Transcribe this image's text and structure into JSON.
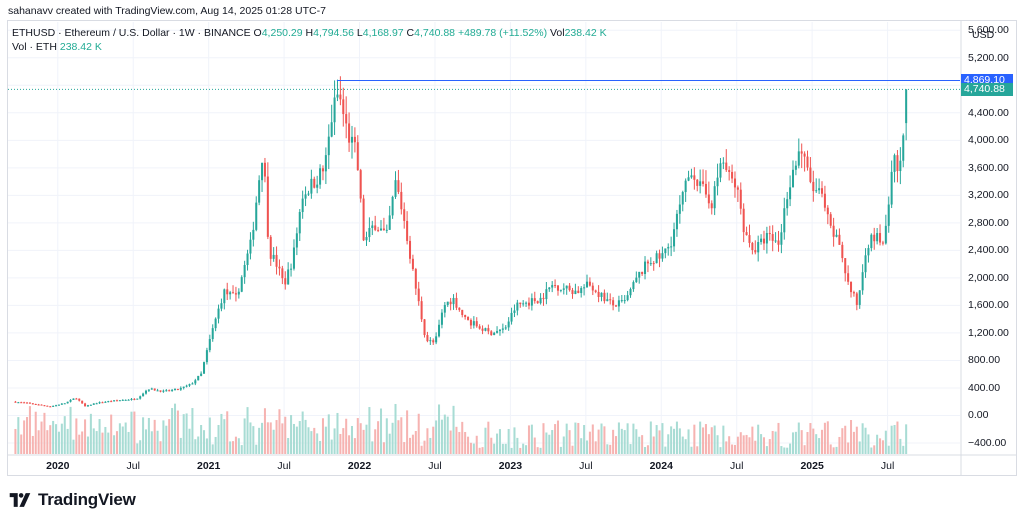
{
  "credit": "sahanavv created with TradingView.com, Aug 14, 2025 01:28 UTC-7",
  "legend": {
    "symbol": "ETHUSD · Ethereum / U.S. Dollar · 1W · BINANCE",
    "o_label": "O",
    "o_value": "4,250.29",
    "h_label": "H",
    "h_value": "4,794.56",
    "l_label": "L",
    "l_value": "4,168.97",
    "c_label": "C",
    "c_value": "4,740.88",
    "change": "+489.78 (+11.52%)",
    "vol_label": "Vol",
    "vol_value": "238.42 K",
    "vol_row_label": "Vol · ETH",
    "vol_row_value": "238.42 K"
  },
  "axis": {
    "currency": "USD"
  },
  "badges": {
    "high_line": "4,869.10",
    "last_price": "4,740.88"
  },
  "brand": {
    "name": "TradingView",
    "logo_icon": "tradingview-logo"
  },
  "colors": {
    "up": "#26a69a",
    "down": "#ef5350",
    "vol_up": "#a8dcd4",
    "vol_down": "#f6b3b1",
    "high_line": "#2962ff",
    "last_badge": "#26a69a",
    "high_badge": "#2962ff",
    "grid": "#f0f3fa"
  },
  "chart_data": {
    "type": "candlestick",
    "title": "ETHUSD · Ethereum / U.S. Dollar · 1W · BINANCE",
    "interval": "1W",
    "y_ticks": [
      "5,600.00",
      "5,200.00",
      "4,800.00",
      "4,400.00",
      "4,000.00",
      "3,600.00",
      "3,200.00",
      "2,800.00",
      "2,400.00",
      "2,000.00",
      "1,600.00",
      "1,200.00",
      "800.00",
      "400.00",
      "0.00",
      "−400.00"
    ],
    "x_ticks": [
      {
        "label": "2020",
        "t": 2020.0,
        "year": true
      },
      {
        "label": "Jul",
        "t": 2020.5,
        "year": false
      },
      {
        "label": "2021",
        "t": 2021.0,
        "year": true
      },
      {
        "label": "Jul",
        "t": 2021.5,
        "year": false
      },
      {
        "label": "2022",
        "t": 2022.0,
        "year": true
      },
      {
        "label": "Jul",
        "t": 2022.5,
        "year": false
      },
      {
        "label": "2023",
        "t": 2023.0,
        "year": true
      },
      {
        "label": "Jul",
        "t": 2023.5,
        "year": false
      },
      {
        "label": "2024",
        "t": 2024.0,
        "year": true
      },
      {
        "label": "Jul",
        "t": 2024.5,
        "year": false
      },
      {
        "label": "2025",
        "t": 2025.0,
        "year": true
      },
      {
        "label": "Jul",
        "t": 2025.5,
        "year": false
      }
    ],
    "ylim": [
      -560,
      5720
    ],
    "xlim": [
      2019.67,
      2025.98
    ],
    "last_close": 4740.88,
    "high_marker": 4869.1,
    "close_anchors": [
      [
        2019.7,
        200
      ],
      [
        2019.8,
        180
      ],
      [
        2019.95,
        130
      ],
      [
        2020.05,
        180
      ],
      [
        2020.12,
        260
      ],
      [
        2020.18,
        130
      ],
      [
        2020.25,
        180
      ],
      [
        2020.35,
        210
      ],
      [
        2020.45,
        230
      ],
      [
        2020.52,
        240
      ],
      [
        2020.6,
        390
      ],
      [
        2020.7,
        350
      ],
      [
        2020.8,
        380
      ],
      [
        2020.88,
        450
      ],
      [
        2020.95,
        600
      ],
      [
        2021.02,
        1200
      ],
      [
        2021.1,
        1800
      ],
      [
        2021.18,
        1700
      ],
      [
        2021.28,
        2500
      ],
      [
        2021.36,
        3900
      ],
      [
        2021.4,
        2400
      ],
      [
        2021.45,
        2200
      ],
      [
        2021.5,
        1900
      ],
      [
        2021.56,
        2300
      ],
      [
        2021.62,
        3200
      ],
      [
        2021.7,
        3400
      ],
      [
        2021.77,
        3600
      ],
      [
        2021.82,
        4400
      ],
      [
        2021.86,
        4700
      ],
      [
        2021.92,
        4100
      ],
      [
        2021.98,
        3800
      ],
      [
        2022.03,
        2500
      ],
      [
        2022.1,
        2800
      ],
      [
        2022.18,
        2600
      ],
      [
        2022.24,
        3400
      ],
      [
        2022.3,
        2800
      ],
      [
        2022.36,
        2000
      ],
      [
        2022.44,
        1100
      ],
      [
        2022.5,
        1050
      ],
      [
        2022.56,
        1600
      ],
      [
        2022.62,
        1700
      ],
      [
        2022.7,
        1400
      ],
      [
        2022.78,
        1300
      ],
      [
        2022.86,
        1200
      ],
      [
        2022.96,
        1250
      ],
      [
        2023.04,
        1600
      ],
      [
        2023.12,
        1650
      ],
      [
        2023.2,
        1700
      ],
      [
        2023.28,
        1900
      ],
      [
        2023.36,
        1850
      ],
      [
        2023.44,
        1800
      ],
      [
        2023.52,
        1900
      ],
      [
        2023.6,
        1750
      ],
      [
        2023.68,
        1600
      ],
      [
        2023.76,
        1650
      ],
      [
        2023.84,
        2000
      ],
      [
        2023.92,
        2250
      ],
      [
        2024.0,
        2300
      ],
      [
        2024.06,
        2500
      ],
      [
        2024.12,
        3000
      ],
      [
        2024.2,
        3600
      ],
      [
        2024.26,
        3300
      ],
      [
        2024.34,
        3100
      ],
      [
        2024.4,
        3750
      ],
      [
        2024.44,
        3500
      ],
      [
        2024.5,
        3300
      ],
      [
        2024.56,
        2600
      ],
      [
        2024.62,
        2400
      ],
      [
        2024.7,
        2600
      ],
      [
        2024.78,
        2500
      ],
      [
        2024.84,
        3300
      ],
      [
        2024.92,
        3900
      ],
      [
        2025.0,
        3300
      ],
      [
        2025.06,
        3200
      ],
      [
        2025.12,
        2700
      ],
      [
        2025.18,
        2500
      ],
      [
        2025.24,
        1900
      ],
      [
        2025.3,
        1600
      ],
      [
        2025.36,
        2500
      ],
      [
        2025.42,
        2600
      ],
      [
        2025.48,
        2500
      ],
      [
        2025.54,
        3700
      ],
      [
        2025.58,
        3500
      ],
      [
        2025.61,
        4250
      ],
      [
        2025.62,
        4741
      ]
    ]
  }
}
